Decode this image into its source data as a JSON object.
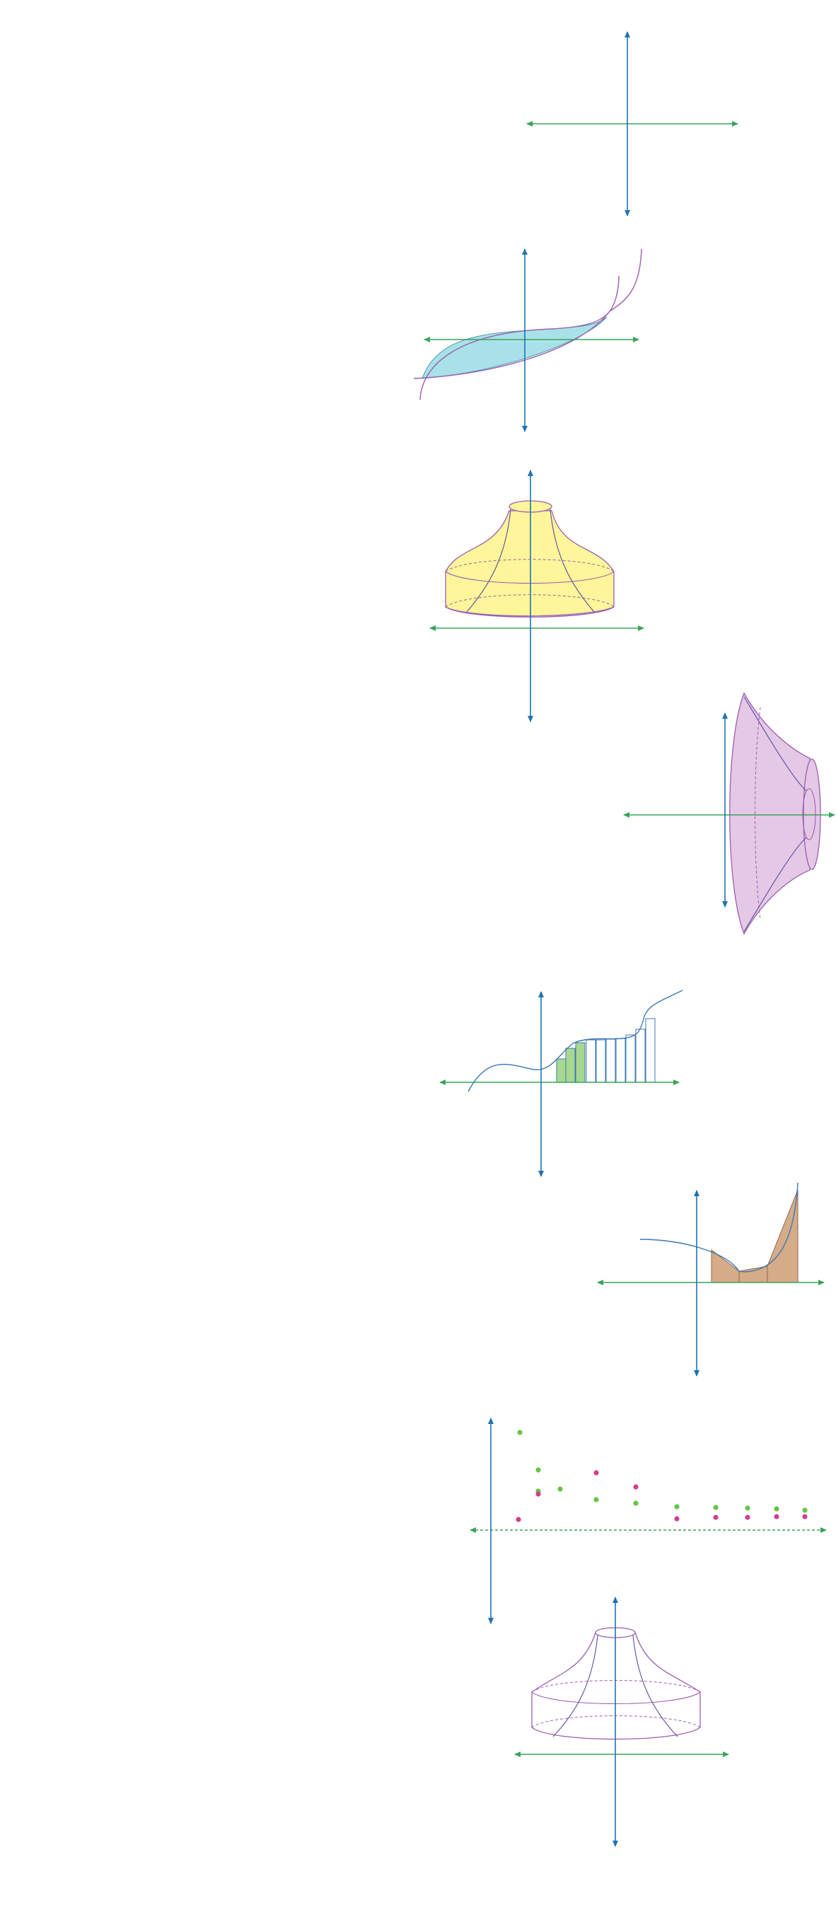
{
  "colors": {
    "x_axis": "#3aa45b",
    "y_axis": "#1f73b0",
    "curve_blue": "#3a78b5",
    "curve_purple": "#9b5fb0",
    "fill_cyan": "#a9e1e8",
    "fill_yellow": "#fff59a",
    "fill_lilac": "#e4c8e6",
    "fill_green": "#a8d88e",
    "fill_tan": "#d6ab87",
    "dot_green": "#67c546",
    "dot_magenta": "#d2408c"
  },
  "panels": [
    {
      "id": "empty-axes",
      "description_icon": "coordinate-axes-icon"
    },
    {
      "id": "area-between-curves",
      "description_icon": "shaded-region-icon"
    },
    {
      "id": "solid-of-revolution-vertical",
      "description_icon": "solid-icon"
    },
    {
      "id": "solid-of-revolution-horizontal",
      "description_icon": "solid-icon"
    },
    {
      "id": "riemann-sum",
      "description_icon": "riemann-rectangles-icon"
    },
    {
      "id": "trapezoid-approximation",
      "description_icon": "trapezoid-icon"
    },
    {
      "id": "sequence-scatter",
      "description_icon": "scatter-points-icon"
    },
    {
      "id": "solid-wireframe",
      "description_icon": "wireframe-icon"
    }
  ]
}
